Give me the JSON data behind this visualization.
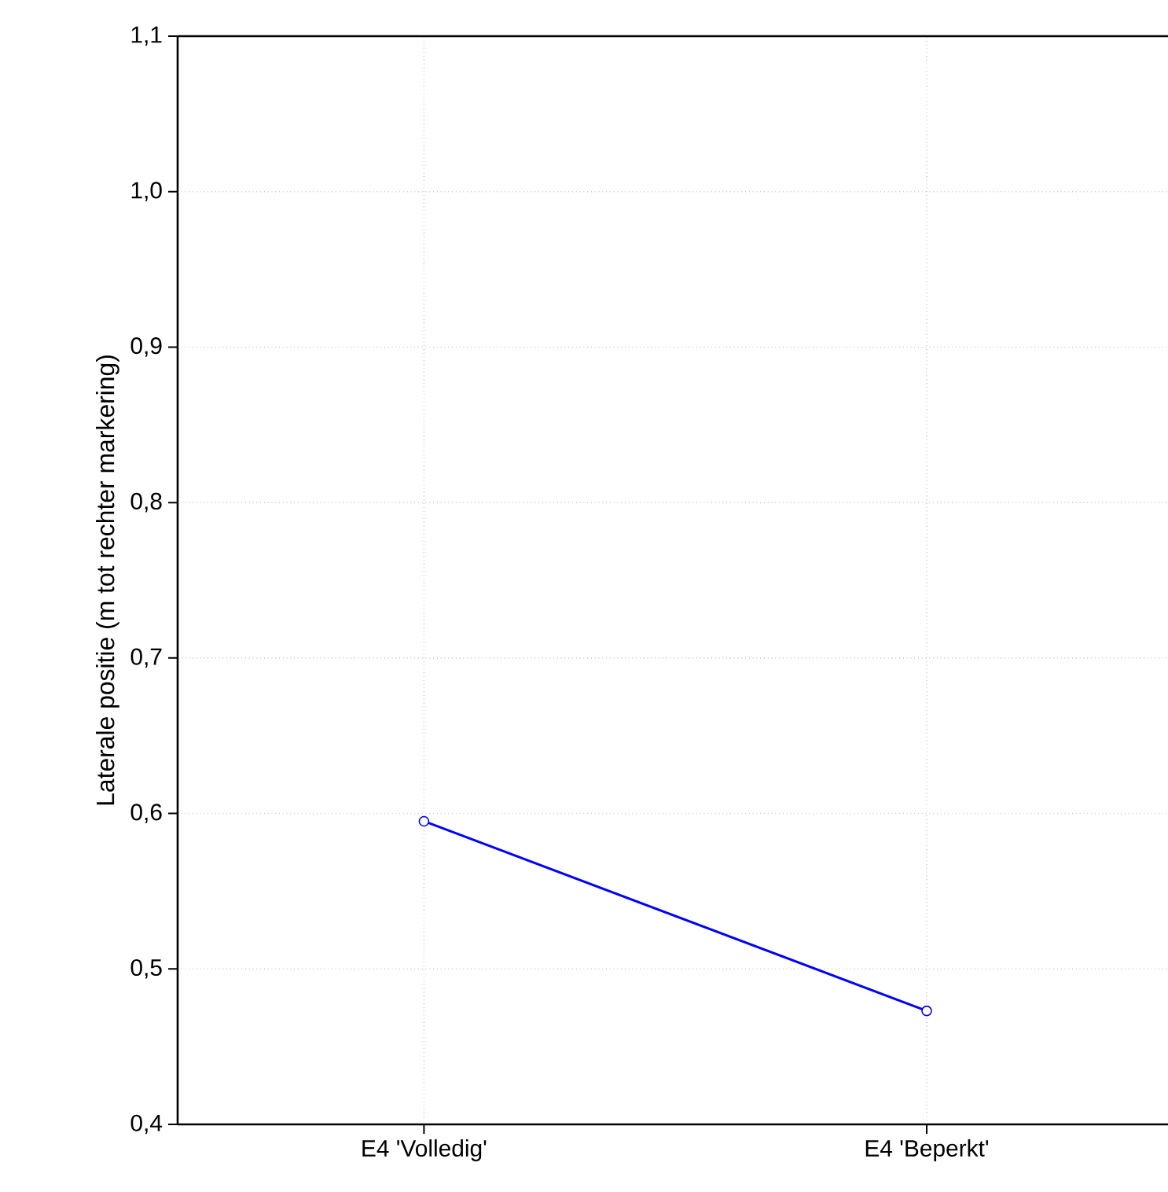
{
  "chart_data": {
    "type": "line",
    "ylabel": "Laterale positie (m tot rechter markering)",
    "categories": [
      "E4 'Volledig'",
      "E4 'Beperkt'"
    ],
    "series": [
      {
        "color": "#0000ff",
        "values": [
          0.595,
          0.473
        ]
      }
    ],
    "ylim": [
      0.4,
      1.1
    ],
    "yticks": [
      {
        "value": 0.4,
        "label": "0,4"
      },
      {
        "value": 0.5,
        "label": "0,5"
      },
      {
        "value": 0.6,
        "label": "0,6"
      },
      {
        "value": 0.7,
        "label": "0,7"
      },
      {
        "value": 0.8,
        "label": "0,8"
      },
      {
        "value": 0.9,
        "label": "0,9"
      },
      {
        "value": 1.0,
        "label": "1,0"
      },
      {
        "value": 1.1,
        "label": "1,1"
      }
    ],
    "grid": true,
    "marker": "circle",
    "line_style": "solid"
  }
}
